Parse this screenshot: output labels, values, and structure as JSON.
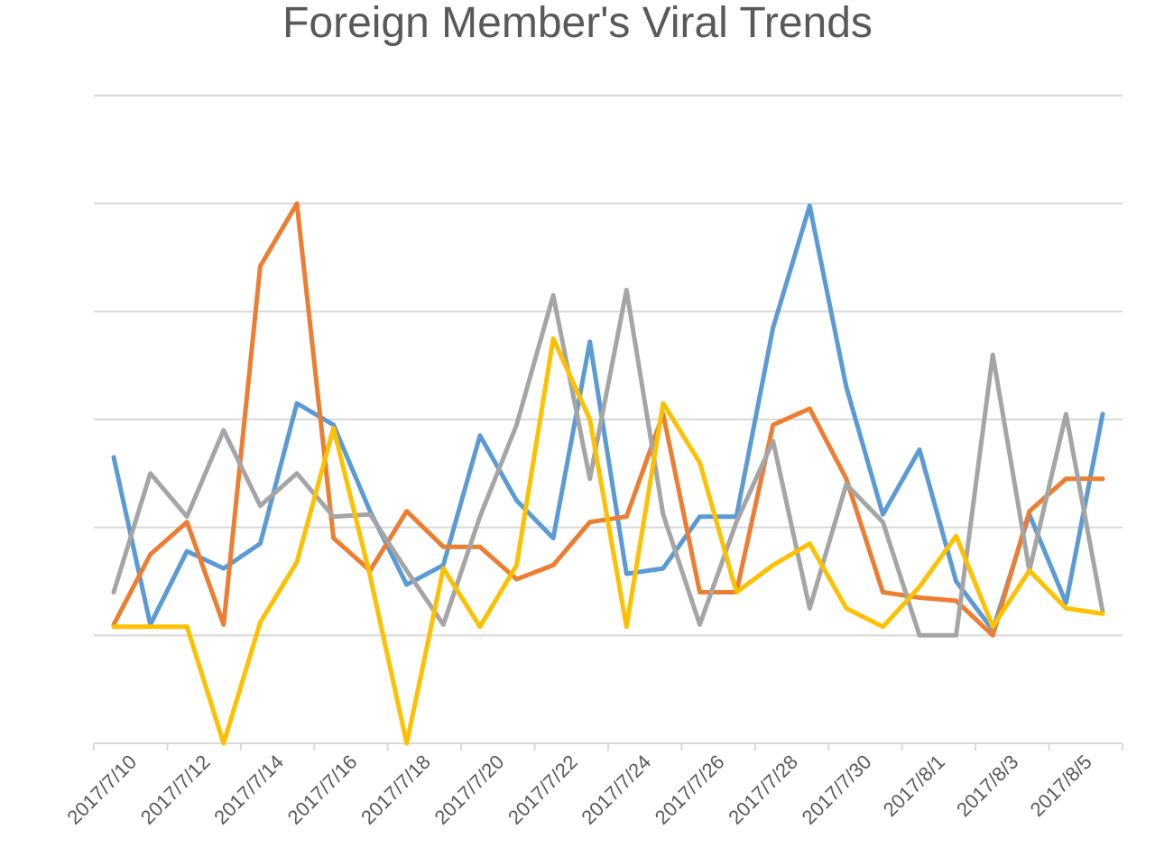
{
  "chart_data": {
    "type": "line",
    "title": "Foreign Member's Viral Trends",
    "xlabel": "",
    "ylabel": "",
    "ylim": [
      -1,
      5
    ],
    "y_ticks": [
      -1,
      0,
      1,
      2,
      3,
      4,
      5
    ],
    "y_tick_labels_visible": false,
    "grid": true,
    "legend": "none",
    "x": [
      "2017/7/10",
      "2017/7/11",
      "2017/7/12",
      "2017/7/13",
      "2017/7/14",
      "2017/7/15",
      "2017/7/16",
      "2017/7/17",
      "2017/7/18",
      "2017/7/19",
      "2017/7/20",
      "2017/7/21",
      "2017/7/22",
      "2017/7/23",
      "2017/7/24",
      "2017/7/25",
      "2017/7/26",
      "2017/7/27",
      "2017/7/28",
      "2017/7/29",
      "2017/7/30",
      "2017/7/31",
      "2017/8/1",
      "2017/8/2",
      "2017/8/3",
      "2017/8/4",
      "2017/8/5",
      "2017/8/6"
    ],
    "x_tick_labels": [
      "2017/7/10",
      "2017/7/12",
      "2017/7/14",
      "2017/7/16",
      "2017/7/18",
      "2017/7/20",
      "2017/7/22",
      "2017/7/24",
      "2017/7/26",
      "2017/7/28",
      "2017/7/30",
      "2017/8/1",
      "2017/8/3",
      "2017/8/5"
    ],
    "series": [
      {
        "color": "#5B9BD5",
        "values": [
          1.65,
          0.1,
          0.78,
          0.62,
          0.85,
          2.15,
          1.95,
          1.15,
          0.47,
          0.65,
          1.85,
          1.25,
          0.9,
          2.72,
          0.57,
          0.62,
          1.1,
          1.1,
          2.85,
          3.98,
          2.3,
          1.12,
          1.72,
          0.5,
          0.05,
          1.12,
          0.3,
          2.05
        ]
      },
      {
        "color": "#ED7D31",
        "values": [
          0.1,
          0.75,
          1.05,
          0.1,
          3.42,
          4.0,
          0.9,
          0.6,
          1.15,
          0.82,
          0.82,
          0.52,
          0.65,
          1.05,
          1.1,
          2.05,
          0.4,
          0.4,
          1.95,
          2.1,
          1.45,
          0.4,
          0.35,
          0.32,
          0.0,
          1.15,
          1.45,
          1.45
        ]
      },
      {
        "color": "#A5A5A5",
        "values": [
          0.4,
          1.5,
          1.1,
          1.9,
          1.2,
          1.5,
          1.1,
          1.12,
          0.6,
          0.1,
          1.1,
          1.95,
          3.15,
          1.45,
          3.2,
          1.12,
          0.1,
          1.05,
          1.8,
          0.25,
          1.4,
          1.05,
          0.0,
          0.0,
          2.6,
          0.6,
          2.05,
          0.22
        ]
      },
      {
        "color": "#FFC000",
        "values": [
          0.08,
          0.08,
          0.08,
          -1.0,
          0.12,
          0.68,
          1.92,
          0.55,
          -1.0,
          0.62,
          0.08,
          0.65,
          2.75,
          2.0,
          0.08,
          2.15,
          1.6,
          0.4,
          0.65,
          0.85,
          0.25,
          0.08,
          0.45,
          0.92,
          0.08,
          0.6,
          0.25,
          0.2
        ]
      }
    ]
  }
}
